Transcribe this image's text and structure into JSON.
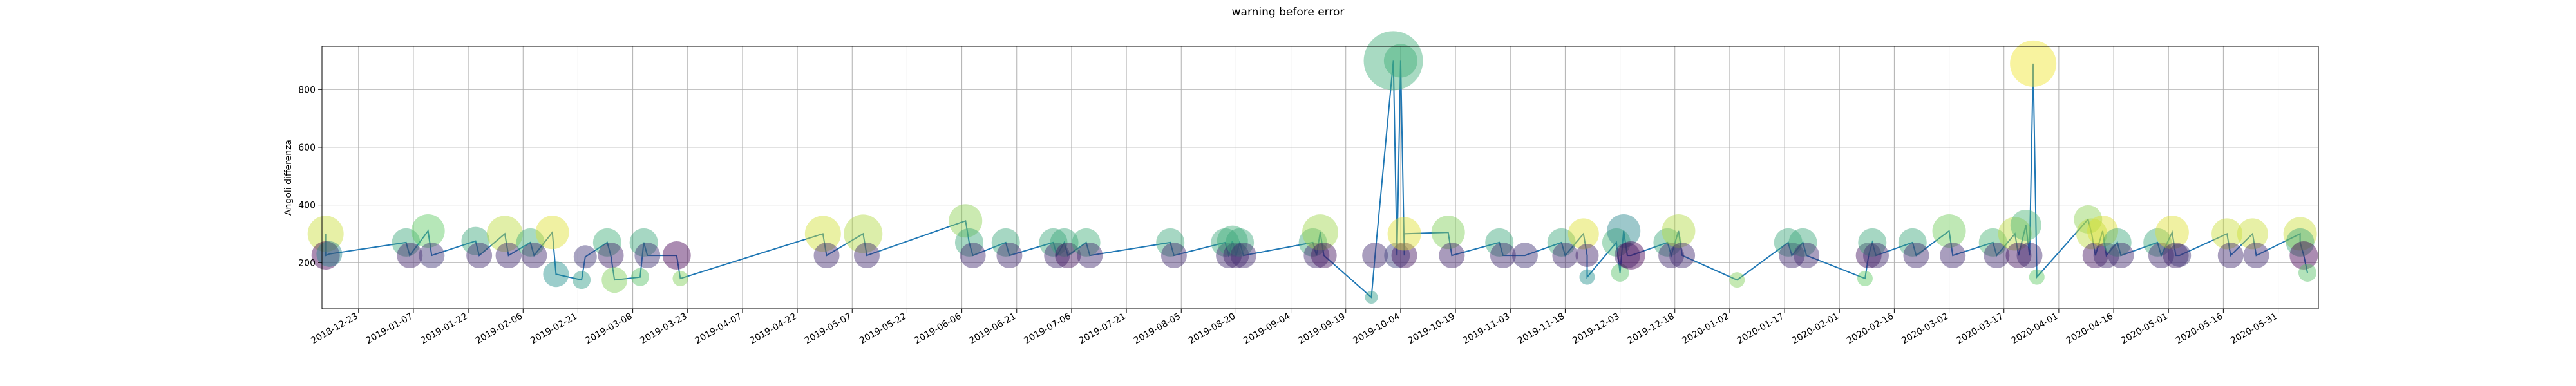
{
  "chart_data": {
    "type": "scatter",
    "title": "warning before error",
    "xlabel": "",
    "ylabel": "Angoli differenza",
    "xlim": [
      "2018-12-13",
      "2020-06-11"
    ],
    "ylim": [
      40,
      950
    ],
    "yticks": [
      200,
      400,
      600,
      800
    ],
    "xticks": [
      "2018-12-23",
      "2019-01-07",
      "2019-01-22",
      "2019-02-06",
      "2019-02-21",
      "2019-03-08",
      "2019-03-23",
      "2019-04-07",
      "2019-04-22",
      "2019-05-07",
      "2019-05-22",
      "2019-06-06",
      "2019-06-21",
      "2019-07-06",
      "2019-07-21",
      "2019-08-05",
      "2019-08-20",
      "2019-09-04",
      "2019-09-19",
      "2019-10-04",
      "2019-10-19",
      "2019-11-03",
      "2019-11-18",
      "2019-12-03",
      "2019-12-18",
      "2020-01-02",
      "2020-01-17",
      "2020-02-01",
      "2020-02-16",
      "2020-03-02",
      "2020-03-17",
      "2020-04-01",
      "2020-04-16",
      "2020-05-01",
      "2020-05-16",
      "2020-05-31"
    ],
    "grid": true,
    "line_color": "#1f77b4",
    "points": [
      {
        "x": "2018-12-14",
        "y": 300,
        "c": 0.92,
        "s": 28
      },
      {
        "x": "2018-12-14",
        "y": 225,
        "c": 0.0,
        "s": 22
      },
      {
        "x": "2018-12-15",
        "y": 230,
        "c": 0.45,
        "s": 20
      },
      {
        "x": "2019-01-05",
        "y": 270,
        "c": 0.6,
        "s": 22
      },
      {
        "x": "2019-01-06",
        "y": 225,
        "c": 0.1,
        "s": 20
      },
      {
        "x": "2019-01-11",
        "y": 310,
        "c": 0.75,
        "s": 26
      },
      {
        "x": "2019-01-12",
        "y": 225,
        "c": 0.15,
        "s": 20
      },
      {
        "x": "2019-01-24",
        "y": 275,
        "c": 0.6,
        "s": 22
      },
      {
        "x": "2019-01-25",
        "y": 225,
        "c": 0.12,
        "s": 20
      },
      {
        "x": "2019-02-01",
        "y": 300,
        "c": 0.9,
        "s": 28
      },
      {
        "x": "2019-02-02",
        "y": 225,
        "c": 0.12,
        "s": 20
      },
      {
        "x": "2019-02-08",
        "y": 270,
        "c": 0.62,
        "s": 22
      },
      {
        "x": "2019-02-09",
        "y": 225,
        "c": 0.12,
        "s": 20
      },
      {
        "x": "2019-02-14",
        "y": 305,
        "c": 0.95,
        "s": 26
      },
      {
        "x": "2019-02-15",
        "y": 160,
        "c": 0.5,
        "s": 20
      },
      {
        "x": "2019-02-22",
        "y": 140,
        "c": 0.55,
        "s": 14
      },
      {
        "x": "2019-02-23",
        "y": 220,
        "c": 0.15,
        "s": 18
      },
      {
        "x": "2019-03-01",
        "y": 270,
        "c": 0.62,
        "s": 22
      },
      {
        "x": "2019-03-02",
        "y": 225,
        "c": 0.1,
        "s": 20
      },
      {
        "x": "2019-03-03",
        "y": 140,
        "c": 0.8,
        "s": 20
      },
      {
        "x": "2019-03-10",
        "y": 150,
        "c": 0.72,
        "s": 14
      },
      {
        "x": "2019-03-11",
        "y": 270,
        "c": 0.6,
        "s": 22
      },
      {
        "x": "2019-03-12",
        "y": 225,
        "c": 0.14,
        "s": 20
      },
      {
        "x": "2019-03-20",
        "y": 225,
        "c": 0.0,
        "s": 22
      },
      {
        "x": "2019-03-21",
        "y": 145,
        "c": 0.8,
        "s": 12
      },
      {
        "x": "2019-04-29",
        "y": 300,
        "c": 0.93,
        "s": 28
      },
      {
        "x": "2019-04-30",
        "y": 225,
        "c": 0.12,
        "s": 20
      },
      {
        "x": "2019-05-10",
        "y": 300,
        "c": 0.88,
        "s": 30
      },
      {
        "x": "2019-05-11",
        "y": 225,
        "c": 0.12,
        "s": 20
      },
      {
        "x": "2019-06-07",
        "y": 345,
        "c": 0.82,
        "s": 26
      },
      {
        "x": "2019-06-08",
        "y": 270,
        "c": 0.6,
        "s": 22
      },
      {
        "x": "2019-06-09",
        "y": 225,
        "c": 0.12,
        "s": 20
      },
      {
        "x": "2019-06-18",
        "y": 270,
        "c": 0.6,
        "s": 22
      },
      {
        "x": "2019-06-19",
        "y": 225,
        "c": 0.12,
        "s": 20
      },
      {
        "x": "2019-07-01",
        "y": 270,
        "c": 0.6,
        "s": 22
      },
      {
        "x": "2019-07-02",
        "y": 225,
        "c": 0.12,
        "s": 20
      },
      {
        "x": "2019-07-04",
        "y": 270,
        "c": 0.6,
        "s": 22
      },
      {
        "x": "2019-07-05",
        "y": 225,
        "c": 0.05,
        "s": 20
      },
      {
        "x": "2019-07-10",
        "y": 270,
        "c": 0.62,
        "s": 22
      },
      {
        "x": "2019-07-11",
        "y": 225,
        "c": 0.12,
        "s": 20
      },
      {
        "x": "2019-08-02",
        "y": 270,
        "c": 0.6,
        "s": 22
      },
      {
        "x": "2019-08-03",
        "y": 225,
        "c": 0.12,
        "s": 20
      },
      {
        "x": "2019-08-17",
        "y": 270,
        "c": 0.6,
        "s": 22
      },
      {
        "x": "2019-08-18",
        "y": 225,
        "c": 0.12,
        "s": 20
      },
      {
        "x": "2019-08-19",
        "y": 275,
        "c": 0.62,
        "s": 24
      },
      {
        "x": "2019-08-20",
        "y": 225,
        "c": 0.1,
        "s": 20
      },
      {
        "x": "2019-08-21",
        "y": 270,
        "c": 0.6,
        "s": 22
      },
      {
        "x": "2019-08-22",
        "y": 225,
        "c": 0.12,
        "s": 20
      },
      {
        "x": "2019-09-10",
        "y": 270,
        "c": 0.6,
        "s": 22
      },
      {
        "x": "2019-09-11",
        "y": 225,
        "c": 0.12,
        "s": 20
      },
      {
        "x": "2019-09-12",
        "y": 305,
        "c": 0.85,
        "s": 28
      },
      {
        "x": "2019-09-13",
        "y": 225,
        "c": 0.05,
        "s": 20
      },
      {
        "x": "2019-09-26",
        "y": 80,
        "c": 0.55,
        "s": 10
      },
      {
        "x": "2019-09-27",
        "y": 225,
        "c": 0.12,
        "s": 20
      },
      {
        "x": "2019-10-02",
        "y": 900,
        "c": 0.62,
        "s": 46
      },
      {
        "x": "2019-10-03",
        "y": 225,
        "c": 0.2,
        "s": 20
      },
      {
        "x": "2019-10-04",
        "y": 900,
        "c": 0.62,
        "s": 26
      },
      {
        "x": "2019-10-05",
        "y": 225,
        "c": 0.05,
        "s": 20
      },
      {
        "x": "2019-10-05",
        "y": 300,
        "c": 0.95,
        "s": 26
      },
      {
        "x": "2019-10-17",
        "y": 305,
        "c": 0.8,
        "s": 26
      },
      {
        "x": "2019-10-18",
        "y": 225,
        "c": 0.1,
        "s": 20
      },
      {
        "x": "2019-10-31",
        "y": 270,
        "c": 0.6,
        "s": 22
      },
      {
        "x": "2019-11-01",
        "y": 225,
        "c": 0.12,
        "s": 20
      },
      {
        "x": "2019-11-07",
        "y": 225,
        "c": 0.14,
        "s": 20
      },
      {
        "x": "2019-11-17",
        "y": 270,
        "c": 0.6,
        "s": 22
      },
      {
        "x": "2019-11-18",
        "y": 225,
        "c": 0.12,
        "s": 20
      },
      {
        "x": "2019-11-23",
        "y": 300,
        "c": 0.95,
        "s": 24
      },
      {
        "x": "2019-11-24",
        "y": 225,
        "c": 0.1,
        "s": 18
      },
      {
        "x": "2019-11-24",
        "y": 150,
        "c": 0.5,
        "s": 12
      },
      {
        "x": "2019-12-02",
        "y": 270,
        "c": 0.65,
        "s": 22
      },
      {
        "x": "2019-12-03",
        "y": 165,
        "c": 0.72,
        "s": 14
      },
      {
        "x": "2019-12-04",
        "y": 310,
        "c": 0.45,
        "s": 26
      },
      {
        "x": "2019-12-05",
        "y": 225,
        "c": 0.12,
        "s": 20
      },
      {
        "x": "2019-12-06",
        "y": 225,
        "c": 0.0,
        "s": 22
      },
      {
        "x": "2019-12-16",
        "y": 270,
        "c": 0.6,
        "s": 22
      },
      {
        "x": "2019-12-17",
        "y": 225,
        "c": 0.12,
        "s": 20
      },
      {
        "x": "2019-12-19",
        "y": 310,
        "c": 0.88,
        "s": 26
      },
      {
        "x": "2019-12-20",
        "y": 225,
        "c": 0.12,
        "s": 20
      },
      {
        "x": "2020-01-04",
        "y": 140,
        "c": 0.8,
        "s": 12
      },
      {
        "x": "2020-01-18",
        "y": 270,
        "c": 0.6,
        "s": 22
      },
      {
        "x": "2020-01-19",
        "y": 225,
        "c": 0.12,
        "s": 20
      },
      {
        "x": "2020-01-22",
        "y": 270,
        "c": 0.6,
        "s": 22
      },
      {
        "x": "2020-01-23",
        "y": 225,
        "c": 0.12,
        "s": 20
      },
      {
        "x": "2020-02-08",
        "y": 145,
        "c": 0.75,
        "s": 12
      },
      {
        "x": "2020-02-09",
        "y": 225,
        "c": 0.05,
        "s": 20
      },
      {
        "x": "2020-02-10",
        "y": 270,
        "c": 0.6,
        "s": 22
      },
      {
        "x": "2020-02-11",
        "y": 225,
        "c": 0.12,
        "s": 20
      },
      {
        "x": "2020-02-21",
        "y": 270,
        "c": 0.6,
        "s": 22
      },
      {
        "x": "2020-02-22",
        "y": 225,
        "c": 0.12,
        "s": 20
      },
      {
        "x": "2020-03-02",
        "y": 310,
        "c": 0.78,
        "s": 26
      },
      {
        "x": "2020-03-03",
        "y": 225,
        "c": 0.12,
        "s": 20
      },
      {
        "x": "2020-03-14",
        "y": 270,
        "c": 0.65,
        "s": 22
      },
      {
        "x": "2020-03-15",
        "y": 225,
        "c": 0.12,
        "s": 20
      },
      {
        "x": "2020-03-20",
        "y": 300,
        "c": 0.9,
        "s": 26
      },
      {
        "x": "2020-03-21",
        "y": 225,
        "c": 0.05,
        "s": 20
      },
      {
        "x": "2020-03-23",
        "y": 330,
        "c": 0.65,
        "s": 24
      },
      {
        "x": "2020-03-24",
        "y": 225,
        "c": 0.12,
        "s": 20
      },
      {
        "x": "2020-03-25",
        "y": 890,
        "c": 0.98,
        "s": 36
      },
      {
        "x": "2020-03-26",
        "y": 150,
        "c": 0.75,
        "s": 12
      },
      {
        "x": "2020-04-09",
        "y": 350,
        "c": 0.82,
        "s": 22
      },
      {
        "x": "2020-04-10",
        "y": 300,
        "c": 0.9,
        "s": 24
      },
      {
        "x": "2020-04-11",
        "y": 225,
        "c": 0.05,
        "s": 20
      },
      {
        "x": "2020-04-13",
        "y": 310,
        "c": 0.95,
        "s": 24
      },
      {
        "x": "2020-04-14",
        "y": 225,
        "c": 0.12,
        "s": 20
      },
      {
        "x": "2020-04-17",
        "y": 270,
        "c": 0.6,
        "s": 22
      },
      {
        "x": "2020-04-18",
        "y": 225,
        "c": 0.12,
        "s": 20
      },
      {
        "x": "2020-04-28",
        "y": 270,
        "c": 0.6,
        "s": 22
      },
      {
        "x": "2020-04-29",
        "y": 225,
        "c": 0.12,
        "s": 20
      },
      {
        "x": "2020-05-02",
        "y": 305,
        "c": 0.95,
        "s": 26
      },
      {
        "x": "2020-05-03",
        "y": 225,
        "c": 0.1,
        "s": 20
      },
      {
        "x": "2020-05-04",
        "y": 225,
        "c": 0.15,
        "s": 18
      },
      {
        "x": "2020-05-17",
        "y": 300,
        "c": 0.92,
        "s": 24
      },
      {
        "x": "2020-05-18",
        "y": 225,
        "c": 0.12,
        "s": 20
      },
      {
        "x": "2020-05-24",
        "y": 300,
        "c": 0.92,
        "s": 24
      },
      {
        "x": "2020-05-25",
        "y": 225,
        "c": 0.12,
        "s": 20
      },
      {
        "x": "2020-06-06",
        "y": 300,
        "c": 0.92,
        "s": 26
      },
      {
        "x": "2020-06-06",
        "y": 270,
        "c": 0.6,
        "s": 22
      },
      {
        "x": "2020-06-07",
        "y": 225,
        "c": 0.0,
        "s": 22
      },
      {
        "x": "2020-06-08",
        "y": 165,
        "c": 0.72,
        "s": 14
      }
    ]
  }
}
